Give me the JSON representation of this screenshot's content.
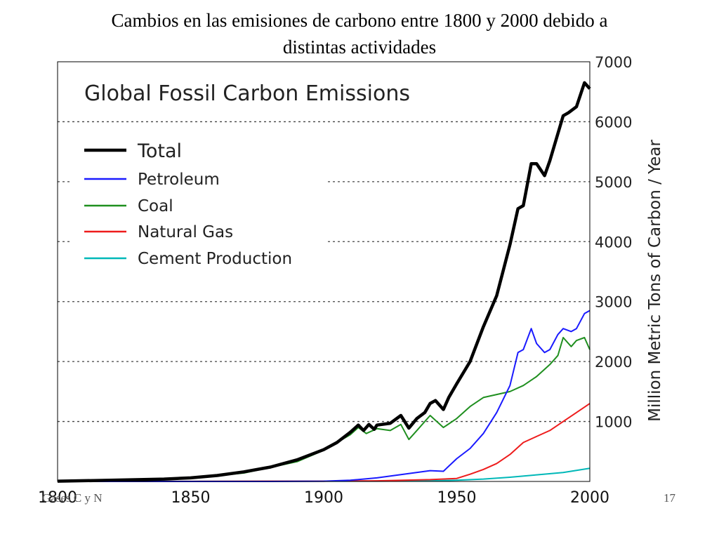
{
  "slide": {
    "title_line1": "Cambios en las emisiones de carbono entre 1800 y 2000 debido a",
    "title_line2": "distintas actividades",
    "footer_left": "Gases C y N",
    "footer_right": "17"
  },
  "chart_data": {
    "type": "line",
    "title": "Global Fossil Carbon Emissions",
    "xlabel": "",
    "ylabel": "Million Metric Tons of Carbon / Year",
    "xlim": [
      1800,
      2000
    ],
    "ylim": [
      0,
      7000
    ],
    "xticks": [
      1800,
      1850,
      1900,
      1950,
      2000
    ],
    "yticks": [
      1000,
      2000,
      3000,
      4000,
      5000,
      6000,
      7000
    ],
    "y_axis_side": "right",
    "grid": "horizontal dotted",
    "legend_position": "top-left",
    "series": [
      {
        "name": "Total",
        "color": "#000000",
        "width": 4.5,
        "x": [
          1800,
          1820,
          1840,
          1850,
          1860,
          1870,
          1880,
          1890,
          1900,
          1905,
          1910,
          1913,
          1915,
          1917,
          1919,
          1920,
          1925,
          1929,
          1932,
          1935,
          1938,
          1940,
          1942,
          1945,
          1947,
          1950,
          1955,
          1960,
          1965,
          1970,
          1973,
          1975,
          1978,
          1980,
          1983,
          1985,
          1988,
          1990,
          1992,
          1995,
          1998,
          2000
        ],
        "y": [
          5,
          20,
          40,
          60,
          100,
          160,
          240,
          360,
          530,
          650,
          820,
          940,
          850,
          950,
          870,
          940,
          970,
          1100,
          890,
          1050,
          1150,
          1300,
          1350,
          1200,
          1400,
          1630,
          2000,
          2580,
          3100,
          3950,
          4550,
          4600,
          5300,
          5300,
          5100,
          5350,
          5800,
          6100,
          6150,
          6250,
          6650,
          6550
        ]
      },
      {
        "name": "Petroleum",
        "color": "#1a1aff",
        "width": 2,
        "x": [
          1800,
          1880,
          1900,
          1910,
          1920,
          1930,
          1940,
          1945,
          1950,
          1955,
          1960,
          1965,
          1970,
          1973,
          1975,
          1978,
          1980,
          1983,
          1985,
          1988,
          1990,
          1993,
          1995,
          1998,
          2000
        ],
        "y": [
          0,
          0,
          5,
          20,
          60,
          120,
          180,
          170,
          380,
          550,
          800,
          1150,
          1600,
          2150,
          2200,
          2550,
          2300,
          2150,
          2200,
          2450,
          2550,
          2500,
          2550,
          2800,
          2850
        ]
      },
      {
        "name": "Coal",
        "color": "#1f8f1f",
        "width": 2,
        "x": [
          1800,
          1850,
          1870,
          1890,
          1900,
          1910,
          1913,
          1916,
          1920,
          1925,
          1929,
          1932,
          1935,
          1940,
          1945,
          1950,
          1955,
          1960,
          1965,
          1970,
          1975,
          1980,
          1985,
          1988,
          1990,
          1993,
          1995,
          1998,
          2000
        ],
        "y": [
          5,
          55,
          140,
          330,
          520,
          780,
          900,
          800,
          880,
          850,
          950,
          700,
          850,
          1100,
          900,
          1050,
          1250,
          1400,
          1450,
          1500,
          1600,
          1750,
          1950,
          2100,
          2400,
          2250,
          2350,
          2400,
          2200
        ]
      },
      {
        "name": "Natural Gas",
        "color": "#ee1c1c",
        "width": 2,
        "x": [
          1800,
          1900,
          1920,
          1940,
          1950,
          1955,
          1960,
          1965,
          1970,
          1975,
          1980,
          1985,
          1990,
          1995,
          2000
        ],
        "y": [
          0,
          5,
          10,
          30,
          50,
          120,
          200,
          300,
          450,
          650,
          750,
          850,
          1000,
          1150,
          1300
        ]
      },
      {
        "name": "Cement Production",
        "color": "#00b8b8",
        "width": 2,
        "x": [
          1800,
          1920,
          1940,
          1950,
          1960,
          1970,
          1980,
          1990,
          2000
        ],
        "y": [
          0,
          5,
          10,
          20,
          40,
          70,
          110,
          150,
          220
        ]
      }
    ]
  }
}
